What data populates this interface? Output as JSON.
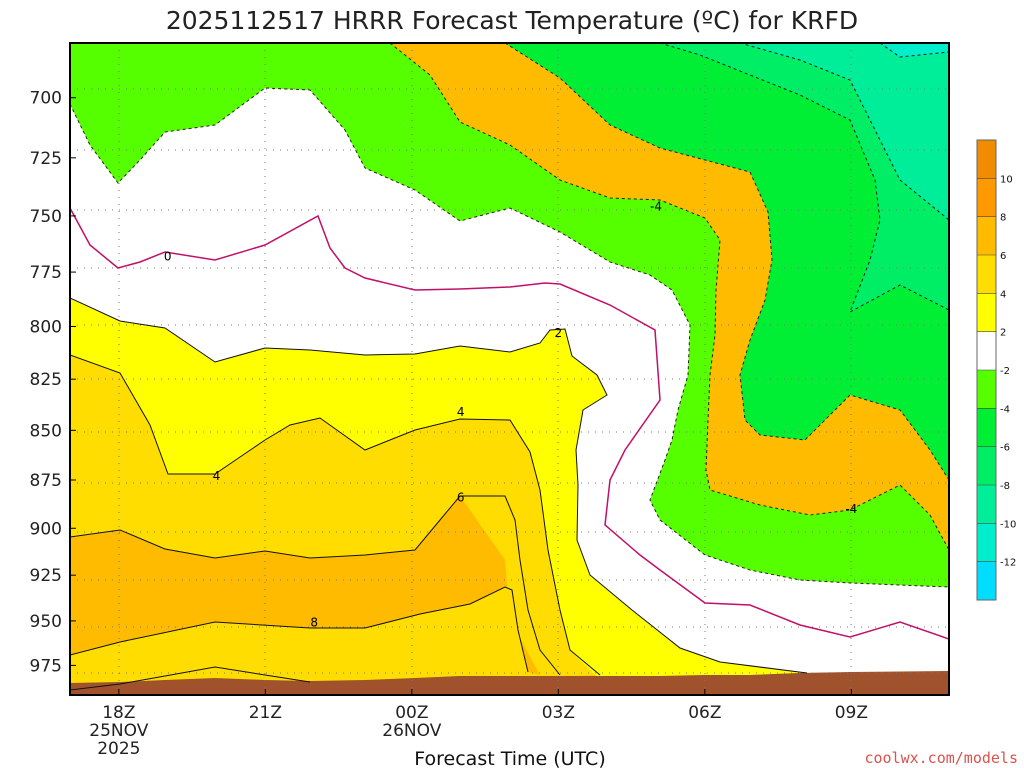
{
  "chart_data": {
    "type": "heatmap",
    "title": "2025112517 HRRR Forecast Temperature (ºC) for KRFD",
    "xlabel": "Forecast Time (UTC)",
    "ylabel": "",
    "x_ticks": [
      {
        "label": "18Z",
        "sub1": "25NOV",
        "sub2": "2025",
        "hour": 1
      },
      {
        "label": "21Z",
        "sub1": "",
        "sub2": "",
        "hour": 4
      },
      {
        "label": "00Z",
        "sub1": "26NOV",
        "sub2": "",
        "hour": 7
      },
      {
        "label": "03Z",
        "sub1": "",
        "sub2": "",
        "hour": 10
      },
      {
        "label": "06Z",
        "sub1": "",
        "sub2": "",
        "hour": 13
      },
      {
        "label": "09Z",
        "sub1": "",
        "sub2": "",
        "hour": 16
      }
    ],
    "xlim": [
      0,
      18
    ],
    "y_ticks": [
      700,
      725,
      750,
      775,
      800,
      825,
      850,
      875,
      900,
      925,
      950,
      975
    ],
    "ylim_pressure_hPa": [
      992,
      678
    ],
    "colorbar": {
      "ticks": [
        "10",
        "8",
        "6",
        "4",
        "2",
        "-2",
        "-4",
        "-6",
        "-8",
        "-10",
        "-12"
      ],
      "bins": [
        {
          "range": [
            10,
            12
          ],
          "color": "#f08c00"
        },
        {
          "range": [
            8,
            10
          ],
          "color": "#ff9900"
        },
        {
          "range": [
            6,
            8
          ],
          "color": "#ffbb00"
        },
        {
          "range": [
            4,
            6
          ],
          "color": "#ffdd00"
        },
        {
          "range": [
            2,
            4
          ],
          "color": "#ffff00"
        },
        {
          "range": [
            -2,
            2
          ],
          "color": "#ffffff"
        },
        {
          "range": [
            -4,
            -2
          ],
          "color": "#55ff00"
        },
        {
          "range": [
            -6,
            -4
          ],
          "color": "#00ee33"
        },
        {
          "range": [
            -8,
            -6
          ],
          "color": "#00ee66"
        },
        {
          "range": [
            -10,
            -8
          ],
          "color": "#00ee99"
        },
        {
          "range": [
            -12,
            -10
          ],
          "color": "#00eecc"
        },
        {
          "range": [
            -14,
            -12
          ],
          "color": "#00ddff"
        }
      ]
    },
    "contour_labels": [
      {
        "text": "0",
        "hour": 2.0,
        "p": 768
      },
      {
        "text": "-4",
        "hour": 12.0,
        "p": 746
      },
      {
        "text": "2",
        "hour": 10.0,
        "p": 803
      },
      {
        "text": "4",
        "hour": 3.0,
        "p": 873
      },
      {
        "text": "4",
        "hour": 8.0,
        "p": 841
      },
      {
        "text": "6",
        "hour": 8.0,
        "p": 884
      },
      {
        "text": "8",
        "hour": 5.0,
        "p": 951
      },
      {
        "text": "-4",
        "hour": 16.0,
        "p": 890
      }
    ],
    "annotations": {
      "credit": "coolwx.com/models"
    }
  }
}
